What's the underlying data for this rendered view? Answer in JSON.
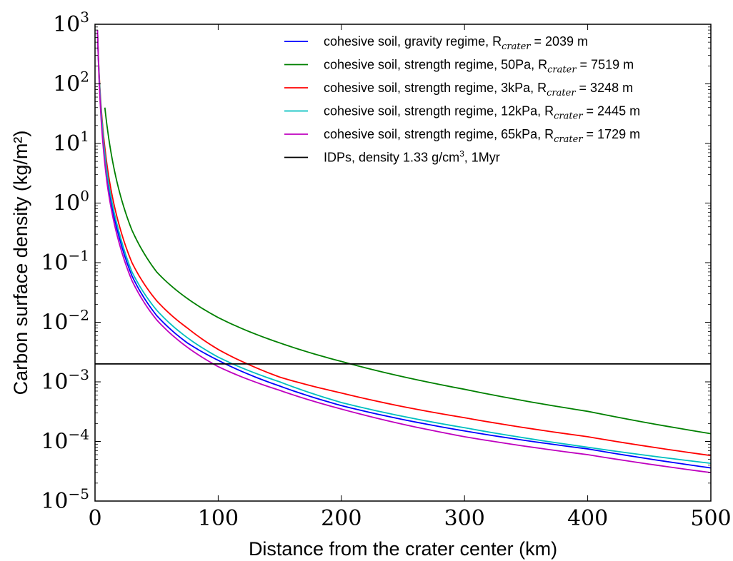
{
  "chart_data": {
    "type": "line",
    "xlabel": "Distance from the crater center (km)",
    "ylabel": "Carbon surface density (kg/m²)",
    "xlim": [
      0,
      500
    ],
    "ylim_log10": [
      -5,
      3
    ],
    "yscale": "log",
    "grid": false,
    "legend_position": "top-right",
    "x_ticks": [
      0,
      100,
      200,
      300,
      400,
      500
    ],
    "y_tick_exponents": [
      -5,
      -4,
      -3,
      -2,
      -1,
      0,
      1,
      2,
      3
    ],
    "series": [
      {
        "name": "cohesive soil, gravity regime, R_crater = 2039 m",
        "legend_parts": [
          "cohesive soil, gravity regime, R",
          "crater",
          " = 2039 m"
        ],
        "color": "#0000ff",
        "x": [
          2,
          5,
          10,
          20,
          30,
          50,
          75,
          100,
          150,
          200,
          300,
          400,
          500
        ],
        "y": [
          800,
          30,
          2.5,
          0.25,
          0.06,
          0.013,
          0.0045,
          0.0023,
          0.00085,
          0.0004,
          0.00015,
          7.5e-05,
          3.6e-05
        ]
      },
      {
        "name": "cohesive soil, strength regime, 50Pa, R_crater = 7519 m",
        "legend_parts": [
          "cohesive soil, strength regime, 50Pa, R",
          "crater",
          " = 7519 m"
        ],
        "color": "#008000",
        "x": [
          8,
          10,
          20,
          30,
          50,
          75,
          100,
          150,
          200,
          300,
          400,
          500
        ],
        "y": [
          40,
          18,
          1.5,
          0.35,
          0.07,
          0.025,
          0.012,
          0.0045,
          0.0022,
          0.00075,
          0.00032,
          0.000135
        ]
      },
      {
        "name": "cohesive soil, strength regime, 3kPa, R_crater = 3248 m",
        "legend_parts": [
          "cohesive soil, strength regime, 3kPa, R",
          "crater",
          " = 3248 m"
        ],
        "color": "#ff0000",
        "x": [
          2,
          5,
          10,
          20,
          30,
          50,
          75,
          100,
          150,
          200,
          300,
          400,
          500
        ],
        "y": [
          800,
          40,
          4,
          0.4,
          0.1,
          0.023,
          0.008,
          0.0035,
          0.0012,
          0.00065,
          0.00025,
          0.00012,
          5.8e-05
        ]
      },
      {
        "name": "cohesive soil, strength regime, 12kPa, R_crater = 2445 m",
        "legend_parts": [
          "cohesive soil, strength regime, 12kPa, R",
          "crater",
          " = 2445 m"
        ],
        "color": "#00bfbf",
        "x": [
          2,
          5,
          10,
          20,
          30,
          50,
          75,
          100,
          150,
          200,
          300,
          400,
          500
        ],
        "y": [
          800,
          35,
          3,
          0.3,
          0.07,
          0.016,
          0.0055,
          0.0026,
          0.001,
          0.00045,
          0.00017,
          8e-05,
          4.3e-05
        ]
      },
      {
        "name": "cohesive soil, strength regime, 65kPa, R_crater = 1729 m",
        "legend_parts": [
          "cohesive soil, strength regime, 65kPa, R",
          "crater",
          " = 1729 m"
        ],
        "color": "#bf00bf",
        "x": [
          2,
          5,
          10,
          20,
          30,
          50,
          75,
          100,
          150,
          200,
          300,
          400,
          500
        ],
        "y": [
          800,
          25,
          2,
          0.2,
          0.05,
          0.011,
          0.0038,
          0.0018,
          0.00072,
          0.00035,
          0.00012,
          6e-05,
          3e-05
        ]
      },
      {
        "name": "IDPs, density 1.33 g/cm³, 1Myr",
        "legend_parts": [
          "IDPs, density 1.33 g/cm",
          "3",
          ", 1Myr"
        ],
        "color": "#000000",
        "x": [
          0,
          500
        ],
        "y": [
          0.002,
          0.002
        ]
      }
    ]
  }
}
